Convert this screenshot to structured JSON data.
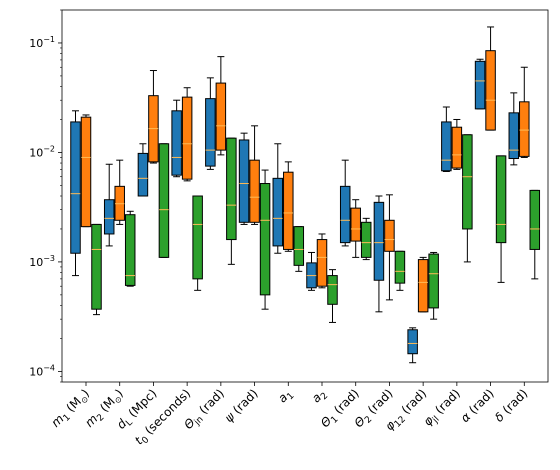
{
  "chart_data": {
    "type": "box",
    "yscale": "log",
    "ylim": [
      8e-05,
      0.2
    ],
    "yticks": [
      {
        "value": 0.0001,
        "base": "10",
        "exp": "−4"
      },
      {
        "value": 0.001,
        "base": "10",
        "exp": "−3"
      },
      {
        "value": 0.01,
        "base": "10",
        "exp": "−2"
      },
      {
        "value": 0.1,
        "base": "10",
        "exp": "−1"
      }
    ],
    "categories": [
      {
        "main": "m",
        "sub": "1",
        "tail": " (M",
        "odot": "⊙",
        "end": ")"
      },
      {
        "main": "m",
        "sub": "2",
        "tail": " (M",
        "odot": "⊙",
        "end": ")"
      },
      {
        "main": "d",
        "sub": "L",
        "tail": " (Mpc)"
      },
      {
        "main": "t",
        "sub": "0",
        "tail": " (seconds)"
      },
      {
        "main": "Θ",
        "sub": "jn",
        "tail": " (rad)"
      },
      {
        "main": "ψ",
        "sub": "",
        "tail": " (rad)"
      },
      {
        "main": "a",
        "sub": "1",
        "tail": ""
      },
      {
        "main": "a",
        "sub": "2",
        "tail": ""
      },
      {
        "main": "Θ",
        "sub": "1",
        "tail": " (rad)"
      },
      {
        "main": "Θ",
        "sub": "2",
        "tail": " (rad)"
      },
      {
        "main": "φ",
        "sub": "12",
        "tail": " (rad)"
      },
      {
        "main": "φ",
        "sub": "jl",
        "tail": " (rad)"
      },
      {
        "main": "α",
        "sub": "",
        "tail": " (rad)"
      },
      {
        "main": "δ",
        "sub": "",
        "tail": " (rad)"
      }
    ],
    "series": [
      {
        "color": "#1f77b4",
        "boxes": [
          {
            "low": 0.00075,
            "q1": 0.0012,
            "median": 0.0042,
            "q3": 0.019,
            "high": 0.024
          },
          {
            "low": 0.0014,
            "q1": 0.0018,
            "median": 0.0025,
            "q3": 0.0037,
            "high": 0.0078
          },
          {
            "low": 0.004,
            "q1": 0.004,
            "median": 0.0058,
            "q3": 0.0098,
            "high": 0.012
          },
          {
            "low": 0.006,
            "q1": 0.0062,
            "median": 0.009,
            "q3": 0.024,
            "high": 0.03
          },
          {
            "low": 0.007,
            "q1": 0.0075,
            "median": 0.0105,
            "q3": 0.031,
            "high": 0.048
          },
          {
            "low": 0.0022,
            "q1": 0.0023,
            "median": 0.0052,
            "q3": 0.013,
            "high": 0.015
          },
          {
            "low": 0.0012,
            "q1": 0.0014,
            "median": 0.0025,
            "q3": 0.0058,
            "high": 0.012
          },
          {
            "low": 0.00055,
            "q1": 0.00058,
            "median": 0.00075,
            "q3": 0.00098,
            "high": 0.00122
          },
          {
            "low": 0.0014,
            "q1": 0.0015,
            "median": 0.0024,
            "q3": 0.0049,
            "high": 0.0085
          },
          {
            "low": 0.00035,
            "q1": 0.00068,
            "median": 0.0015,
            "q3": 0.0035,
            "high": 0.004
          },
          {
            "low": 0.00012,
            "q1": 0.000145,
            "median": 0.00018,
            "q3": 0.00024,
            "high": 0.00025
          },
          {
            "low": 0.0067,
            "q1": 0.0068,
            "median": 0.0085,
            "q3": 0.019,
            "high": 0.026
          },
          {
            "low": 0.025,
            "q1": 0.025,
            "median": 0.045,
            "q3": 0.068,
            "high": 0.071
          },
          {
            "low": 0.0077,
            "q1": 0.0088,
            "median": 0.0105,
            "q3": 0.023,
            "high": 0.035
          }
        ]
      },
      {
        "color": "#ff7f0e",
        "boxes": [
          {
            "low": 0.0021,
            "q1": 0.0021,
            "median": 0.009,
            "q3": 0.021,
            "high": 0.022
          },
          {
            "low": 0.0022,
            "q1": 0.0024,
            "median": 0.0034,
            "q3": 0.0049,
            "high": 0.0085
          },
          {
            "low": 0.008,
            "q1": 0.0082,
            "median": 0.0165,
            "q3": 0.033,
            "high": 0.056
          },
          {
            "low": 0.0055,
            "q1": 0.0057,
            "median": 0.012,
            "q3": 0.032,
            "high": 0.039
          },
          {
            "low": 0.0095,
            "q1": 0.0105,
            "median": 0.0175,
            "q3": 0.043,
            "high": 0.075
          },
          {
            "low": 0.0022,
            "q1": 0.0023,
            "median": 0.0039,
            "q3": 0.0085,
            "high": 0.0175
          },
          {
            "low": 0.00125,
            "q1": 0.0013,
            "median": 0.0028,
            "q3": 0.0066,
            "high": 0.0082
          },
          {
            "low": 0.00058,
            "q1": 0.0006,
            "median": 0.0011,
            "q3": 0.0016,
            "high": 0.0018
          },
          {
            "low": 0.0011,
            "q1": 0.00155,
            "median": 0.002,
            "q3": 0.0031,
            "high": 0.0037
          },
          {
            "low": 0.00045,
            "q1": 0.00125,
            "median": 0.0016,
            "q3": 0.0024,
            "high": 0.0041
          },
          {
            "low": 0.00035,
            "q1": 0.00035,
            "median": 0.00065,
            "q3": 0.00105,
            "high": 0.0011
          },
          {
            "low": 0.007,
            "q1": 0.0072,
            "median": 0.0095,
            "q3": 0.017,
            "high": 0.02
          },
          {
            "low": 0.016,
            "q1": 0.016,
            "median": 0.03,
            "q3": 0.085,
            "high": 0.14
          },
          {
            "low": 0.009,
            "q1": 0.0092,
            "median": 0.016,
            "q3": 0.029,
            "high": 0.06
          }
        ]
      },
      {
        "color": "#2ca02c",
        "boxes": [
          {
            "low": 0.00033,
            "q1": 0.00037,
            "median": 0.0013,
            "q3": 0.0022,
            "high": 0.0022
          },
          {
            "low": 0.0006,
            "q1": 0.00061,
            "median": 0.00075,
            "q3": 0.0027,
            "high": 0.0029
          },
          {
            "low": 0.0011,
            "q1": 0.0011,
            "median": 0.003,
            "q3": 0.012,
            "high": 0.012
          },
          {
            "low": 0.00055,
            "q1": 0.0007,
            "median": 0.0022,
            "q3": 0.004,
            "high": 0.004
          },
          {
            "low": 0.00095,
            "q1": 0.0016,
            "median": 0.0033,
            "q3": 0.0135,
            "high": 0.0135
          },
          {
            "low": 0.00037,
            "q1": 0.0005,
            "median": 0.0024,
            "q3": 0.0052,
            "high": 0.0069
          },
          {
            "low": 0.00082,
            "q1": 0.00093,
            "median": 0.0013,
            "q3": 0.0021,
            "high": 0.0021
          },
          {
            "low": 0.00028,
            "q1": 0.00041,
            "median": 0.00062,
            "q3": 0.00075,
            "high": 0.00085
          },
          {
            "low": 0.00105,
            "q1": 0.0011,
            "median": 0.0015,
            "q3": 0.0023,
            "high": 0.0025
          },
          {
            "low": 0.00055,
            "q1": 0.00064,
            "median": 0.00082,
            "q3": 0.00125,
            "high": 0.00125
          },
          {
            "low": 0.0003,
            "q1": 0.00038,
            "median": 0.00078,
            "q3": 0.00118,
            "high": 0.00122
          },
          {
            "low": 0.001,
            "q1": 0.002,
            "median": 0.006,
            "q3": 0.0145,
            "high": 0.0145
          },
          {
            "low": 0.00065,
            "q1": 0.0015,
            "median": 0.0022,
            "q3": 0.0093,
            "high": 0.0093
          },
          {
            "low": 0.0007,
            "q1": 0.0013,
            "median": 0.002,
            "q3": 0.0045,
            "high": 0.0045
          }
        ]
      }
    ],
    "median_color": "#ffbb55",
    "grid": false,
    "legend": "none"
  }
}
